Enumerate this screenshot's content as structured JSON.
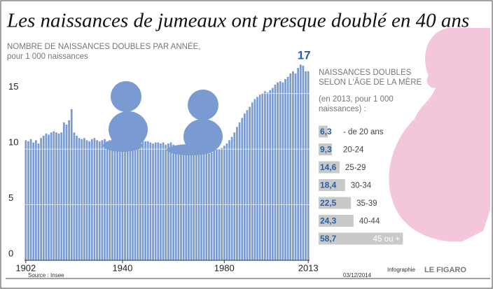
{
  "title": "Les naissances de jumeaux ont presque doublé en 40 ans",
  "source": "Source : Insee",
  "date": "03/12/2014",
  "credit": "Infographie",
  "publisher": "LE FIGARO",
  "chart_data": [
    {
      "type": "bar",
      "subtitle": [
        "NOMBRE DE NAISSANCES DOUBLES PAR ANNÉE,",
        "pour 1 000 naissances"
      ],
      "x": [
        1902,
        1903,
        1904,
        1905,
        1906,
        1907,
        1908,
        1909,
        1910,
        1911,
        1912,
        1913,
        1914,
        1915,
        1916,
        1917,
        1918,
        1919,
        1920,
        1921,
        1922,
        1923,
        1924,
        1925,
        1926,
        1927,
        1928,
        1929,
        1930,
        1931,
        1932,
        1933,
        1934,
        1935,
        1936,
        1937,
        1938,
        1939,
        1940,
        1941,
        1942,
        1943,
        1944,
        1945,
        1946,
        1947,
        1948,
        1949,
        1950,
        1951,
        1952,
        1953,
        1954,
        1955,
        1956,
        1957,
        1958,
        1959,
        1960,
        1961,
        1962,
        1963,
        1964,
        1965,
        1966,
        1967,
        1968,
        1969,
        1970,
        1971,
        1972,
        1973,
        1974,
        1975,
        1976,
        1977,
        1978,
        1979,
        1980,
        1981,
        1982,
        1983,
        1984,
        1985,
        1986,
        1987,
        1988,
        1989,
        1990,
        1991,
        1992,
        1993,
        1994,
        1995,
        1996,
        1997,
        1998,
        1999,
        2000,
        2001,
        2002,
        2003,
        2004,
        2005,
        2006,
        2007,
        2008,
        2009,
        2010,
        2011,
        2012,
        2013
      ],
      "values": [
        10.8,
        10.7,
        10.9,
        10.6,
        10.8,
        10.5,
        11.0,
        11.2,
        11.4,
        11.3,
        11.5,
        11.6,
        11.5,
        11.4,
        11.5,
        12.4,
        12.2,
        12.6,
        13.6,
        11.5,
        11.2,
        11.0,
        10.9,
        11.0,
        10.8,
        10.7,
        10.9,
        11.0,
        10.8,
        10.7,
        10.8,
        10.9,
        10.7,
        10.8,
        11.0,
        10.9,
        10.8,
        10.7,
        11.2,
        11.0,
        10.8,
        10.9,
        11.0,
        11.2,
        11.1,
        10.9,
        10.8,
        10.7,
        10.7,
        10.6,
        10.5,
        10.6,
        10.6,
        10.5,
        10.6,
        10.4,
        10.5,
        10.6,
        10.4,
        10.3,
        10.3,
        10.2,
        10.2,
        10.1,
        10.0,
        10.0,
        9.9,
        9.8,
        9.8,
        9.7,
        9.7,
        9.6,
        9.6,
        9.7,
        9.9,
        10.0,
        10.0,
        10.1,
        10.3,
        10.5,
        10.8,
        11.1,
        11.5,
        12.0,
        12.4,
        12.8,
        13.2,
        13.5,
        13.8,
        14.2,
        14.5,
        14.7,
        14.9,
        15.0,
        15.2,
        15.1,
        15.3,
        15.5,
        15.8,
        16.0,
        16.1,
        16.0,
        16.3,
        16.5,
        16.8,
        17.0,
        16.8,
        17.3,
        17.6,
        17.5,
        17.0,
        17
      ],
      "color": "#7a9bd1",
      "label_color": "#2c5fa0",
      "xlim": [
        1901.5,
        2013.5
      ],
      "xticks": [
        1902,
        1940,
        1980,
        2013
      ],
      "ylim": [
        0,
        18.5
      ],
      "yticks": [
        0,
        5,
        10,
        15
      ],
      "grid": true
    },
    {
      "type": "barh",
      "title": [
        "NAISSANCES DOUBLES",
        "SELON L'ÂGE DE LA MÈRE"
      ],
      "subtitle": [
        "(en 2013, pour 1 000",
        "naissances) :"
      ],
      "categories": [
        "- de 20 ans",
        "20-24",
        "25-29",
        "30-34",
        "35-39",
        "40-44",
        "45 ou +"
      ],
      "values": [
        6.3,
        9.3,
        14.6,
        18.4,
        22.5,
        24.3,
        58.7
      ],
      "value_labels": [
        "6,3",
        "9,3",
        "14,6",
        "18,4",
        "22,5",
        "24,3",
        "58,7"
      ],
      "color": "#c9c9c9",
      "label_color": "#2c5fa0"
    }
  ]
}
